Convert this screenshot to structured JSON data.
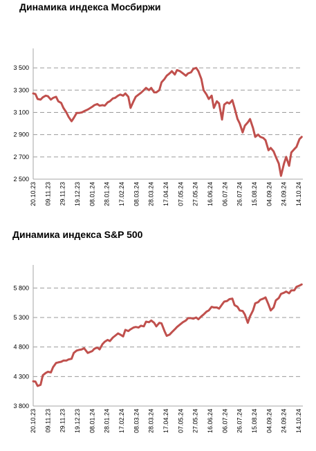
{
  "chart_data": [
    {
      "type": "line",
      "title": "Динамика индекса Мосбиржи",
      "xlabel": "",
      "ylabel": "",
      "ylim": [
        2500,
        3600
      ],
      "yticks": [
        2500,
        2700,
        2900,
        3100,
        3300,
        3500
      ],
      "ytick_labels": [
        "2 500",
        "2 700",
        "2 900",
        "3 100",
        "3 300",
        "3 500"
      ],
      "xtick_labels": [
        "20.10.23",
        "09.11.23",
        "29.11.23",
        "19.12.23",
        "08.01.24",
        "28.01.24",
        "17.02.24",
        "08.03.24",
        "28.03.24",
        "17.04.24",
        "07.05.24",
        "27.05.24",
        "16.06.24",
        "06.07.24",
        "26.07.24",
        "15.08.24",
        "04.09.24",
        "24.09.24",
        "14.10.24"
      ],
      "grid": true,
      "line_color": "#c0504d",
      "series": [
        {
          "x": [
            "20.10.23",
            "23.10.23",
            "26.10.23",
            "30.10.23",
            "02.11.23",
            "06.11.23",
            "09.11.23",
            "13.11.23",
            "16.11.23",
            "20.11.23",
            "23.11.23",
            "27.11.23",
            "30.11.23",
            "04.12.23",
            "07.12.23",
            "11.12.23",
            "14.12.23",
            "18.12.23",
            "21.12.23",
            "25.12.23",
            "28.12.23",
            "02.01.24",
            "08.01.24",
            "11.01.24",
            "15.01.24",
            "18.01.24",
            "22.01.24",
            "25.01.24",
            "29.01.24",
            "01.02.24",
            "05.02.24",
            "08.02.24",
            "12.02.24",
            "15.02.24",
            "19.02.24",
            "22.02.24",
            "26.02.24",
            "29.02.24",
            "04.03.24",
            "07.03.24",
            "11.03.24",
            "14.03.24",
            "18.03.24",
            "21.03.24",
            "25.03.24",
            "28.03.24",
            "01.04.24",
            "04.04.24",
            "08.04.24",
            "11.04.24",
            "15.04.24",
            "18.04.24",
            "22.04.24",
            "25.04.24",
            "29.04.24",
            "02.05.24",
            "06.05.24",
            "10.05.24",
            "14.05.24",
            "17.05.24",
            "21.05.24",
            "24.05.24",
            "28.05.24",
            "31.05.24",
            "04.06.24",
            "07.06.24",
            "11.06.24",
            "14.06.24",
            "18.06.24",
            "21.06.24",
            "25.06.24",
            "28.06.24",
            "02.07.24",
            "05.07.24",
            "09.07.24",
            "12.07.24",
            "16.07.24",
            "19.07.24",
            "23.07.24",
            "26.07.24",
            "30.07.24",
            "02.08.24",
            "06.08.24",
            "09.08.24",
            "13.08.24",
            "16.08.24",
            "20.08.24",
            "23.08.24",
            "27.08.24",
            "30.08.24",
            "03.09.24",
            "06.09.24",
            "10.09.24",
            "13.09.24",
            "17.09.24",
            "20.09.24",
            "24.09.24",
            "27.09.24",
            "01.10.24",
            "04.10.24",
            "08.10.24",
            "11.10.24",
            "15.10.24",
            "18.10.24"
          ],
          "values": [
            3270,
            3265,
            3220,
            3215,
            3235,
            3250,
            3245,
            3215,
            3230,
            3240,
            3200,
            3185,
            3140,
            3100,
            3060,
            3020,
            3050,
            3095,
            3095,
            3100,
            3110,
            3125,
            3150,
            3165,
            3175,
            3160,
            3165,
            3160,
            3190,
            3200,
            3225,
            3230,
            3250,
            3260,
            3250,
            3270,
            3240,
            3140,
            3200,
            3240,
            3260,
            3275,
            3300,
            3320,
            3300,
            3320,
            3280,
            3280,
            3300,
            3370,
            3400,
            3430,
            3450,
            3470,
            3440,
            3480,
            3470,
            3450,
            3430,
            3450,
            3460,
            3490,
            3500,
            3470,
            3400,
            3300,
            3260,
            3220,
            3250,
            3140,
            3200,
            3180,
            3035,
            3170,
            3190,
            3180,
            3210,
            3140,
            3040,
            3000,
            2920,
            2980,
            3010,
            3040,
            2960,
            2880,
            2900,
            2880,
            2870,
            2850,
            2760,
            2780,
            2750,
            2700,
            2640,
            2530,
            2640,
            2700,
            2620,
            2740,
            2770,
            2790,
            2860,
            2880
          ]
        }
      ]
    },
    {
      "type": "line",
      "title": "Динамика индекса S&P 500",
      "xlabel": "",
      "ylabel": "",
      "ylim": [
        3800,
        6050
      ],
      "yticks": [
        3800,
        4300,
        4800,
        5300,
        5800
      ],
      "ytick_labels": [
        "3 800",
        "4 300",
        "4 800",
        "5 300",
        "5 800"
      ],
      "xtick_labels": [
        "20.10.23",
        "09.11.23",
        "29.11.23",
        "19.12.23",
        "08.01.24",
        "28.01.24",
        "17.02.24",
        "08.03.24",
        "28.03.24",
        "17.04.24",
        "07.05.24",
        "27.05.24",
        "16.06.24",
        "06.07.24",
        "26.07.24",
        "15.08.24",
        "04.09.24",
        "24.09.24",
        "14.10.24"
      ],
      "grid": true,
      "line_color": "#c0504d",
      "series": [
        {
          "x": [
            "20.10.23",
            "23.10.23",
            "26.10.23",
            "30.10.23",
            "02.11.23",
            "06.11.23",
            "09.11.23",
            "13.11.23",
            "16.11.23",
            "20.11.23",
            "23.11.23",
            "27.11.23",
            "30.11.23",
            "04.12.23",
            "07.12.23",
            "11.12.23",
            "14.12.23",
            "18.12.23",
            "21.12.23",
            "25.12.23",
            "28.12.23",
            "02.01.24",
            "08.01.24",
            "11.01.24",
            "15.01.24",
            "18.01.24",
            "22.01.24",
            "25.01.24",
            "29.01.24",
            "01.02.24",
            "05.02.24",
            "08.02.24",
            "12.02.24",
            "15.02.24",
            "19.02.24",
            "22.02.24",
            "26.02.24",
            "29.02.24",
            "04.03.24",
            "07.03.24",
            "11.03.24",
            "14.03.24",
            "18.03.24",
            "21.03.24",
            "25.03.24",
            "28.03.24",
            "01.04.24",
            "04.04.24",
            "08.04.24",
            "11.04.24",
            "15.04.24",
            "18.04.24",
            "22.04.24",
            "25.04.24",
            "29.04.24",
            "02.05.24",
            "06.05.24",
            "10.05.24",
            "14.05.24",
            "17.05.24",
            "21.05.24",
            "24.05.24",
            "28.05.24",
            "31.05.24",
            "04.06.24",
            "07.06.24",
            "11.06.24",
            "14.06.24",
            "18.06.24",
            "21.06.24",
            "25.06.24",
            "28.06.24",
            "02.07.24",
            "05.07.24",
            "09.07.24",
            "12.07.24",
            "16.07.24",
            "19.07.24",
            "23.07.24",
            "26.07.24",
            "30.07.24",
            "02.08.24",
            "06.08.24",
            "09.08.24",
            "13.08.24",
            "16.08.24",
            "20.08.24",
            "23.08.24",
            "27.08.24",
            "30.08.24",
            "03.09.24",
            "06.09.24",
            "10.09.24",
            "13.09.24",
            "17.09.24",
            "20.09.24",
            "24.09.24",
            "27.09.24",
            "01.10.24",
            "04.10.24",
            "08.10.24",
            "11.10.24",
            "15.10.24",
            "18.10.24"
          ],
          "values": [
            4220,
            4215,
            4140,
            4160,
            4320,
            4360,
            4380,
            4370,
            4460,
            4530,
            4540,
            4550,
            4570,
            4570,
            4590,
            4600,
            4700,
            4740,
            4750,
            4760,
            4780,
            4700,
            4730,
            4770,
            4790,
            4760,
            4850,
            4890,
            4920,
            4900,
            4960,
            4990,
            5030,
            5010,
            4980,
            5090,
            5070,
            5100,
            5130,
            5140,
            5130,
            5160,
            5150,
            5230,
            5220,
            5250,
            5210,
            5150,
            5210,
            5200,
            5070,
            4990,
            5010,
            5050,
            5100,
            5140,
            5180,
            5220,
            5250,
            5290,
            5290,
            5280,
            5300,
            5270,
            5320,
            5350,
            5400,
            5420,
            5480,
            5470,
            5470,
            5450,
            5520,
            5570,
            5580,
            5610,
            5620,
            5510,
            5480,
            5420,
            5410,
            5350,
            5210,
            5320,
            5420,
            5540,
            5560,
            5600,
            5620,
            5640,
            5520,
            5420,
            5470,
            5590,
            5630,
            5700,
            5720,
            5740,
            5710,
            5760,
            5760,
            5820,
            5840,
            5860
          ]
        }
      ]
    }
  ]
}
